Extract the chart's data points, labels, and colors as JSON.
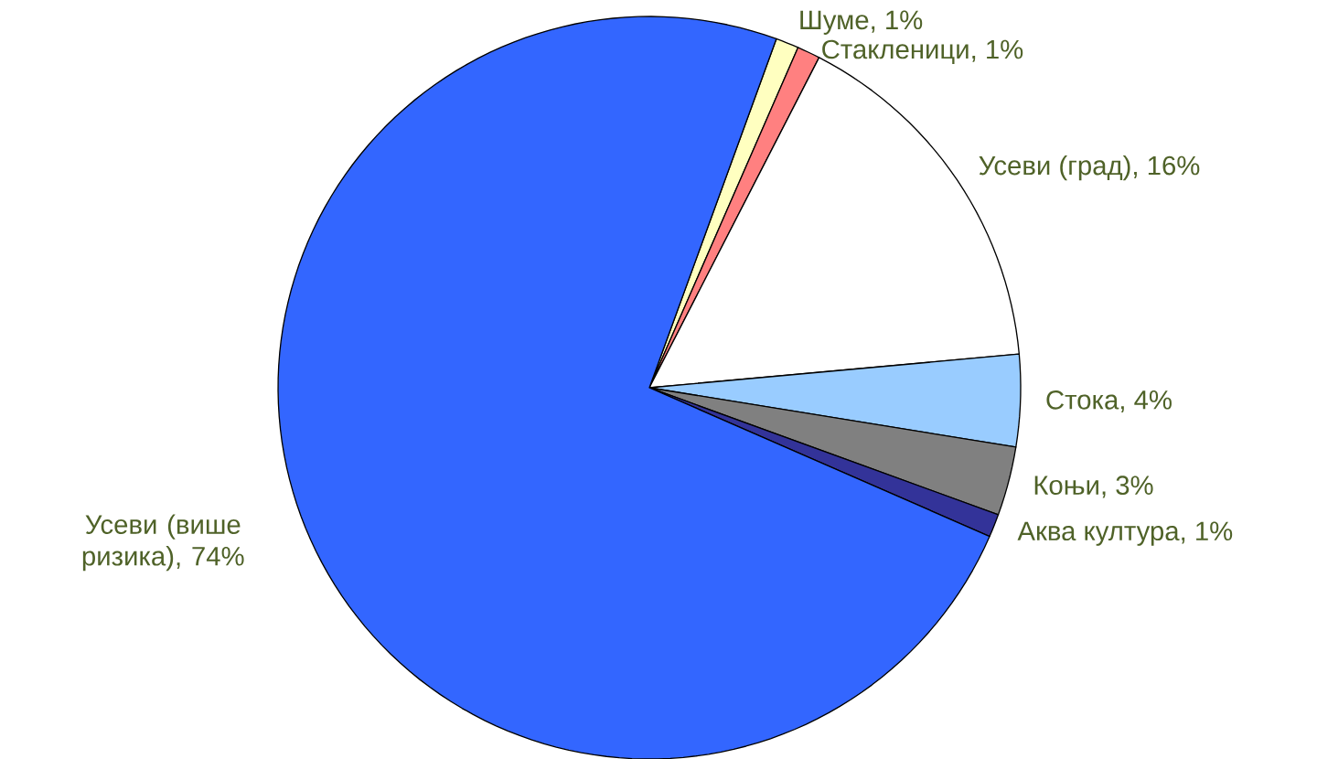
{
  "chart_data": {
    "type": "pie",
    "categories": [
      "Шуме, 1%",
      "Стакленици, 1%",
      "Усеви (град), 16%",
      "Стока, 4%",
      "Коњи, 3%",
      "Аква култура, 1%",
      "Усеви (више ризика), 74%"
    ],
    "values": [
      1,
      1,
      16,
      4,
      3,
      1,
      74
    ],
    "colors": [
      "#ffffc0",
      "#ff8080",
      "#ffffff",
      "#99ccff",
      "#808080",
      "#333399",
      "#3366ff"
    ]
  }
}
